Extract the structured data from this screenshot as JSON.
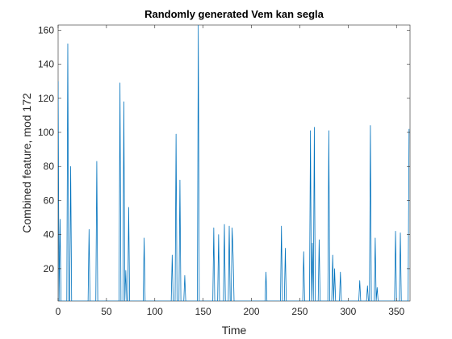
{
  "chart_data": {
    "type": "line",
    "title": "Randomly generated Vem kan segla",
    "xlabel": "Time",
    "ylabel": "Combined feature, mod 172",
    "x": [
      0,
      1,
      2,
      3,
      9,
      10,
      11,
      12,
      13,
      14,
      31,
      32,
      33,
      39,
      40,
      41,
      63,
      64,
      65,
      67,
      68,
      69,
      70,
      71,
      72,
      73,
      74,
      88,
      89,
      90,
      117,
      118,
      119,
      121,
      122,
      123,
      125,
      126,
      127,
      130,
      131,
      132,
      144,
      145,
      146,
      160,
      161,
      162,
      165,
      166,
      167,
      171,
      172,
      173,
      176,
      177,
      178,
      179,
      180,
      181,
      182,
      214,
      215,
      216,
      230,
      231,
      232,
      234,
      235,
      236,
      253,
      254,
      255,
      260,
      261,
      262,
      263,
      264,
      265,
      266,
      269,
      270,
      271,
      279,
      280,
      281,
      283,
      284,
      285,
      286,
      287,
      291,
      292,
      293,
      311,
      312,
      313,
      319,
      320,
      321,
      322,
      323,
      324,
      327,
      328,
      329,
      330,
      331,
      348,
      349,
      350,
      353,
      354,
      355,
      362,
      363
    ],
    "series": [
      {
        "color": "#0072bd",
        "values": [
          130,
          1,
          49,
          1,
          1,
          152,
          1,
          1,
          80,
          1,
          1,
          43,
          1,
          1,
          83,
          1,
          1,
          129,
          1,
          1,
          118,
          1,
          19,
          1,
          1,
          56,
          1,
          1,
          38,
          1,
          1,
          28,
          1,
          1,
          99,
          1,
          1,
          72,
          1,
          1,
          16,
          1,
          1,
          163,
          1,
          1,
          44,
          1,
          1,
          40,
          1,
          1,
          46,
          1,
          1,
          45,
          1,
          1,
          44,
          28,
          1,
          1,
          18,
          1,
          1,
          45,
          1,
          1,
          32,
          1,
          1,
          30,
          1,
          1,
          101,
          1,
          35,
          1,
          103,
          1,
          1,
          37,
          1,
          1,
          101,
          1,
          1,
          28,
          1,
          20,
          1,
          1,
          18,
          1,
          1,
          13,
          1,
          1,
          10,
          1,
          1,
          104,
          1,
          1,
          38,
          1,
          9,
          1,
          1,
          42,
          1,
          1,
          41,
          1,
          1,
          102
        ]
      }
    ],
    "xlim": [
      0,
      364
    ],
    "ylim": [
      1,
      163
    ],
    "xticks": [
      0,
      50,
      100,
      150,
      200,
      250,
      300,
      350
    ],
    "yticks": [
      20,
      40,
      60,
      80,
      100,
      120,
      140,
      160
    ]
  }
}
